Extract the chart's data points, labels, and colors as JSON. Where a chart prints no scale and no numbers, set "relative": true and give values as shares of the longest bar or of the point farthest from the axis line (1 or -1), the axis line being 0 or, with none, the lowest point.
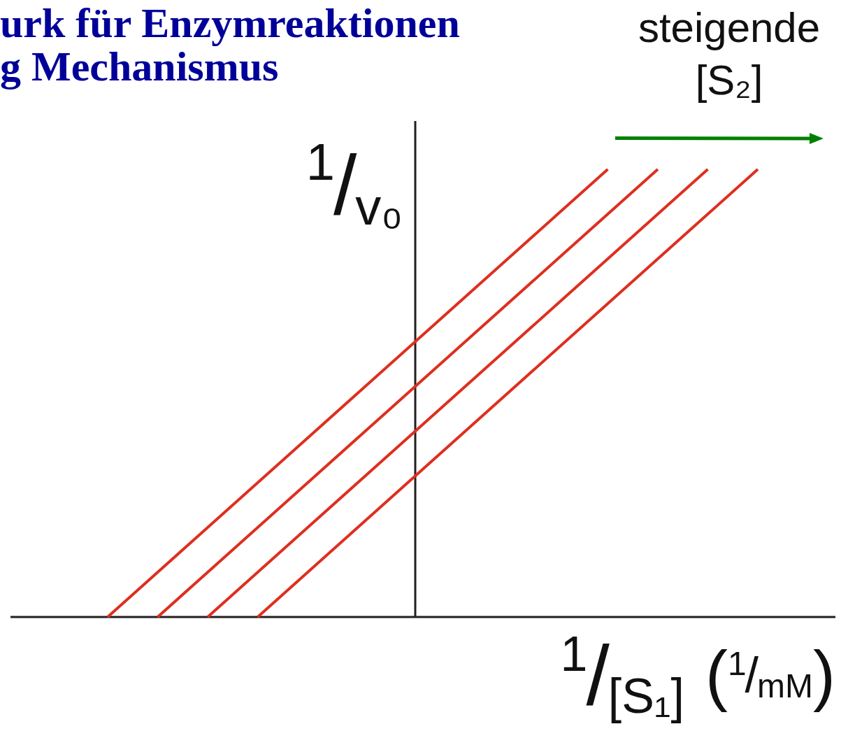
{
  "chart_data": {
    "type": "line",
    "title": "urk für Enzymreaktionen",
    "subtitle": "g Mechanismus",
    "xlabel": "1/[S₁] (1/mM)",
    "ylabel": "1/v₀",
    "annotations": [
      "steigende [S₂]"
    ],
    "relative": true,
    "tick_labels": false,
    "legend": false,
    "marker": "none",
    "line_style": "solid",
    "categories": [
      null,
      null,
      null,
      null,
      null,
      null,
      null,
      null,
      null,
      null,
      null,
      null,
      null,
      null
    ],
    "series": [
      {
        "color": "#de2f1f",
        "values": [
          0,
          0.1,
          0.2,
          0.3,
          0.4,
          0.5,
          0.6,
          0.7,
          0.8,
          0.9,
          1,
          null,
          null,
          null
        ]
      },
      {
        "color": "#de2f1f",
        "values": [
          null,
          0,
          0.1,
          0.2,
          0.3,
          0.4,
          0.5,
          0.6,
          0.7,
          0.8,
          0.9,
          1,
          null,
          null
        ]
      },
      {
        "color": "#de2f1f",
        "values": [
          null,
          null,
          0,
          0.1,
          0.2,
          0.3,
          0.4,
          0.5,
          0.6,
          0.7,
          0.8,
          0.9,
          1,
          null
        ]
      },
      {
        "color": "#de2f1f",
        "values": [
          null,
          null,
          null,
          0,
          0.1,
          0.2,
          0.3,
          0.4,
          0.5,
          0.6,
          0.7,
          0.8,
          0.9,
          1
        ]
      }
    ]
  }
}
